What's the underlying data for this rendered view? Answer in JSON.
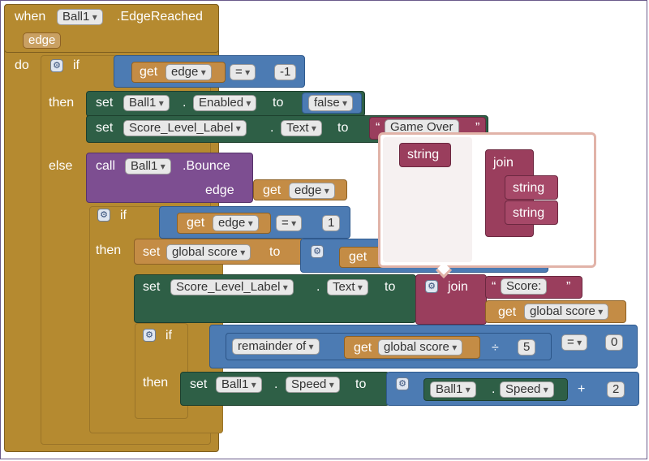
{
  "event": {
    "when": "when",
    "component": "Ball1",
    "event_name": ".EdgeReached",
    "param": "edge",
    "do": "do"
  },
  "if1": {
    "if": "if",
    "get": "get",
    "var": "edge",
    "op": "=",
    "value": "-1",
    "then": "then",
    "else": "else"
  },
  "set_enabled": {
    "set": "set",
    "component": "Ball1",
    "dot": ".",
    "property": "Enabled",
    "to": "to",
    "value": "false"
  },
  "set_label_game_over": {
    "set": "set",
    "component": "Score_Level_Label",
    "dot": ".",
    "property": "Text",
    "to": "to",
    "text": "Game Over"
  },
  "call_bounce": {
    "call": "call",
    "component": "Ball1",
    "method": ".Bounce",
    "param": "edge",
    "get": "get",
    "var": "edge"
  },
  "if2": {
    "if": "if",
    "get": "get",
    "var": "edge",
    "op": "=",
    "value": "1",
    "then": "then"
  },
  "set_score": {
    "set": "set",
    "var": "global score",
    "to": "to",
    "get": "get"
  },
  "set_label_score": {
    "set": "set",
    "component": "Score_Level_Label",
    "dot": ".",
    "property": "Text",
    "to": "to",
    "join": "join",
    "text": "Score: ",
    "get": "get",
    "var": "global score"
  },
  "if3": {
    "if": "if",
    "func": "remainder of",
    "get": "get",
    "var": "global score",
    "div": "÷",
    "divisor": "5",
    "op": "=",
    "value": "0",
    "then": "then"
  },
  "set_speed": {
    "set": "set",
    "component": "Ball1",
    "dot": ".",
    "property": "Speed",
    "to": "to",
    "get_component": "Ball1",
    "get_property": "Speed",
    "plus": "+",
    "addend": "2"
  },
  "mutator": {
    "left_item": "string",
    "right_title": "join",
    "items": [
      "string",
      "string"
    ]
  },
  "colors": {
    "control": "#b58a30",
    "logic": "#4c7bb3",
    "component": "#2e5f46",
    "procedure": "#7d4e91",
    "text": "#9a3e5d",
    "variable": "#c48c45"
  },
  "icons": {
    "mutator": "gear-icon",
    "dropdown": "chevron-down-icon"
  }
}
